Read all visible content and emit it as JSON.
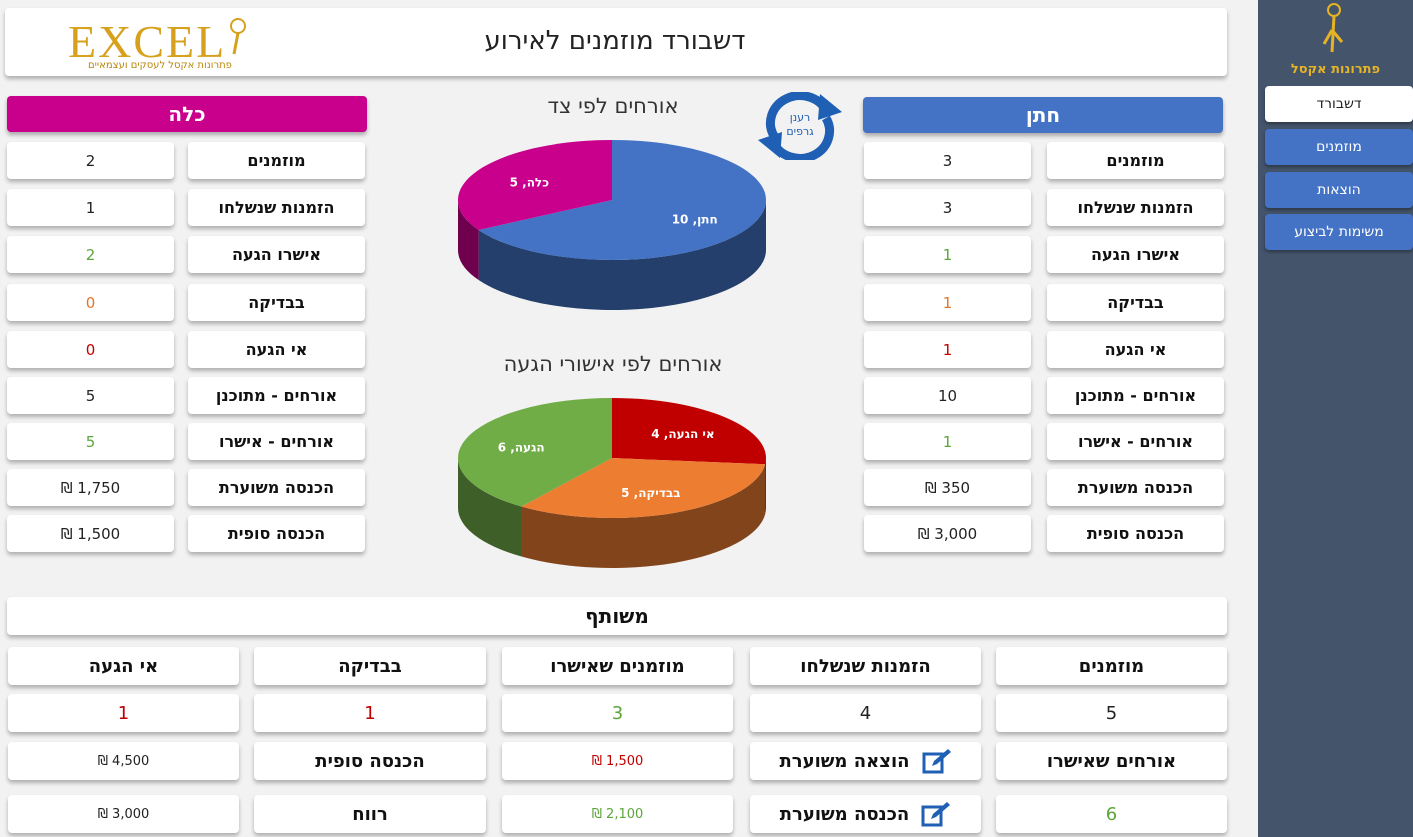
{
  "header": {
    "title": "דשבורד מוזמנים לאירוע",
    "logo_text": "EXCEL",
    "logo_tagline": "פתרונות אקסל לעסקים ועצמאיים"
  },
  "sidebar": {
    "logo_text": "פתרונות אקסל",
    "items": [
      {
        "label": "דשבורד",
        "active": true
      },
      {
        "label": "מוזמנים",
        "active": false
      },
      {
        "label": "הוצאות",
        "active": false
      },
      {
        "label": "משימות לביצוע",
        "active": false
      }
    ]
  },
  "refresh": {
    "label_line1": "רענן",
    "label_line2": "גרפים"
  },
  "groom": {
    "title": "חתן",
    "rows": [
      {
        "label": "מוזמנים",
        "value": "3"
      },
      {
        "label": "הזמנות שנשלחו",
        "value": "3"
      },
      {
        "label": "אישרו הגעה",
        "value": "1"
      },
      {
        "label": "בבדיקה",
        "value": "1"
      },
      {
        "label": "אי הגעה",
        "value": "1"
      },
      {
        "label": "אורחים - מתוכנן",
        "value": "10"
      },
      {
        "label": "אורחים - אישרו",
        "value": "1"
      },
      {
        "label": "הכנסה משוערת",
        "value": "₪ 350"
      },
      {
        "label": "הכנסה סופית",
        "value": "₪ 3,000"
      }
    ]
  },
  "bride": {
    "title": "כלה",
    "rows": [
      {
        "label": "מוזמנים",
        "value": "2"
      },
      {
        "label": "הזמנות שנשלחו",
        "value": "1"
      },
      {
        "label": "אישרו הגעה",
        "value": "2"
      },
      {
        "label": "בבדיקה",
        "value": "0"
      },
      {
        "label": "אי הגעה",
        "value": "0"
      },
      {
        "label": "אורחים - מתוכנן",
        "value": "5"
      },
      {
        "label": "אורחים - אישרו",
        "value": "5"
      },
      {
        "label": "הכנסה משוערת",
        "value": "₪ 1,750"
      },
      {
        "label": "הכנסה סופית",
        "value": "₪ 1,500"
      }
    ]
  },
  "chart_data": [
    {
      "type": "pie",
      "title": "אורחים לפי צד",
      "categories": [
        "חתן",
        "כלה"
      ],
      "values": [
        10,
        5
      ],
      "data_labels": [
        "חתן, 10",
        "כלה, 5"
      ],
      "colors": [
        "#4472c4",
        "#c8008c"
      ]
    },
    {
      "type": "pie",
      "title": "אורחים לפי אישורי הגעה",
      "categories": [
        "אי הגעה",
        "בבדיקה",
        "הגעה"
      ],
      "values": [
        4,
        5,
        6
      ],
      "data_labels": [
        "אי הגעה, 4",
        "בבדיקה, 5",
        "הגעה, 6"
      ],
      "colors": [
        "#c00000",
        "#ed7d31",
        "#70ad47"
      ]
    }
  ],
  "shared": {
    "title": "משותף",
    "col_headers": [
      "מוזמנים",
      "הזמנות שנשלחו",
      "מוזמנים שאישרו",
      "בבדיקה",
      "אי הגעה"
    ],
    "col_values": [
      "5",
      "4",
      "3",
      "1",
      "1"
    ],
    "confirmed_guests_label": "אורחים שאישרו",
    "confirmed_guests_value": "6",
    "expected_expense_label": "הוצאה משוערת",
    "expected_expense_value": "₪ 1,500",
    "expected_income_label": "הכנסה משוערת",
    "expected_income_value": "₪ 2,100",
    "final_income_label": "הכנסה סופית",
    "final_income_value": "₪ 4,500",
    "profit_label": "רווח",
    "profit_value": "₪ 3,000"
  }
}
